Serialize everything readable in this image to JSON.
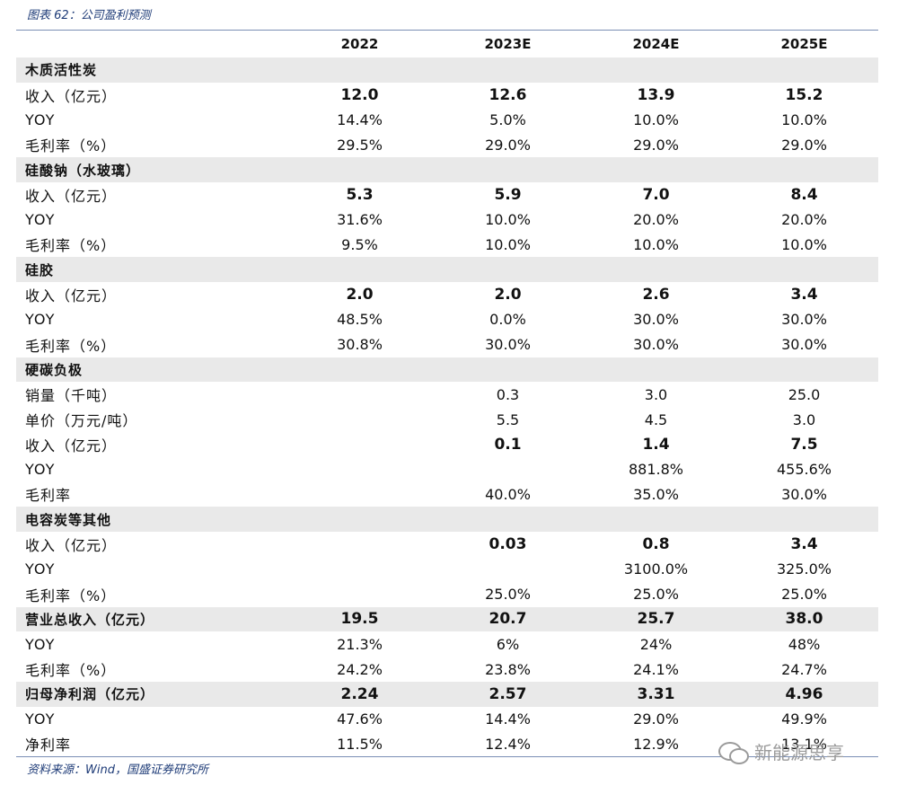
{
  "caption": "图表 62：公司盈利预测",
  "columns": [
    "",
    "2022",
    "2023E",
    "2024E",
    "2025E"
  ],
  "sections": [
    {
      "title": "木质活性炭",
      "rows": [
        {
          "label": "收入（亿元）",
          "bold": true,
          "values": [
            "12.0",
            "12.6",
            "13.9",
            "15.2"
          ]
        },
        {
          "label": "YOY",
          "bold": false,
          "values": [
            "14.4%",
            "5.0%",
            "10.0%",
            "10.0%"
          ]
        },
        {
          "label": "毛利率（%）",
          "bold": false,
          "values": [
            "29.5%",
            "29.0%",
            "29.0%",
            "29.0%"
          ]
        }
      ]
    },
    {
      "title": "硅酸钠（水玻璃）",
      "rows": [
        {
          "label": "收入（亿元）",
          "bold": true,
          "values": [
            "5.3",
            "5.9",
            "7.0",
            "8.4"
          ]
        },
        {
          "label": "YOY",
          "bold": false,
          "values": [
            "31.6%",
            "10.0%",
            "20.0%",
            "20.0%"
          ]
        },
        {
          "label": "毛利率（%）",
          "bold": false,
          "values": [
            "9.5%",
            "10.0%",
            "10.0%",
            "10.0%"
          ]
        }
      ]
    },
    {
      "title": "硅胶",
      "rows": [
        {
          "label": "收入（亿元）",
          "bold": true,
          "values": [
            "2.0",
            "2.0",
            "2.6",
            "3.4"
          ]
        },
        {
          "label": "YOY",
          "bold": false,
          "values": [
            "48.5%",
            "0.0%",
            "30.0%",
            "30.0%"
          ]
        },
        {
          "label": "毛利率（%）",
          "bold": false,
          "values": [
            "30.8%",
            "30.0%",
            "30.0%",
            "30.0%"
          ]
        }
      ]
    },
    {
      "title": "硬碳负极",
      "rows": [
        {
          "label": "销量（千吨）",
          "bold": false,
          "values": [
            "",
            "0.3",
            "3.0",
            "25.0"
          ]
        },
        {
          "label": "单价（万元/吨）",
          "bold": false,
          "values": [
            "",
            "5.5",
            "4.5",
            "3.0"
          ]
        },
        {
          "label": "收入（亿元）",
          "bold": true,
          "values": [
            "",
            "0.1",
            "1.4",
            "7.5"
          ]
        },
        {
          "label": "YOY",
          "bold": false,
          "values": [
            "",
            "",
            "881.8%",
            "455.6%"
          ]
        },
        {
          "label": "毛利率",
          "bold": false,
          "values": [
            "",
            "40.0%",
            "35.0%",
            "30.0%"
          ]
        }
      ]
    },
    {
      "title": "电容炭等其他",
      "rows": [
        {
          "label": "收入（亿元）",
          "bold": true,
          "values": [
            "",
            "0.03",
            "0.8",
            "3.4"
          ]
        },
        {
          "label": "YOY",
          "bold": false,
          "values": [
            "",
            "",
            "3100.0%",
            "325.0%"
          ]
        },
        {
          "label": "毛利率（%）",
          "bold": false,
          "values": [
            "",
            "25.0%",
            "25.0%",
            "25.0%"
          ]
        }
      ]
    }
  ],
  "totals": [
    {
      "title": "营业总收入（亿元）",
      "values": [
        "19.5",
        "20.7",
        "25.7",
        "38.0"
      ],
      "rows": [
        {
          "label": "YOY",
          "values": [
            "21.3%",
            "6%",
            "24%",
            "48%"
          ]
        },
        {
          "label": "毛利率（%）",
          "values": [
            "24.2%",
            "23.8%",
            "24.1%",
            "24.7%"
          ]
        }
      ]
    },
    {
      "title": "归母净利润（亿元）",
      "values": [
        "2.24",
        "2.57",
        "3.31",
        "4.96"
      ],
      "rows": [
        {
          "label": "YOY",
          "values": [
            "47.6%",
            "14.4%",
            "29.0%",
            "49.9%"
          ]
        },
        {
          "label": "净利率",
          "values": [
            "11.5%",
            "12.4%",
            "12.9%",
            "13.1%"
          ]
        }
      ]
    }
  ],
  "source": "资料来源：Wind，国盛证券研究所",
  "watermark": "新能源思享",
  "watermark_icon": "wechat-icon"
}
